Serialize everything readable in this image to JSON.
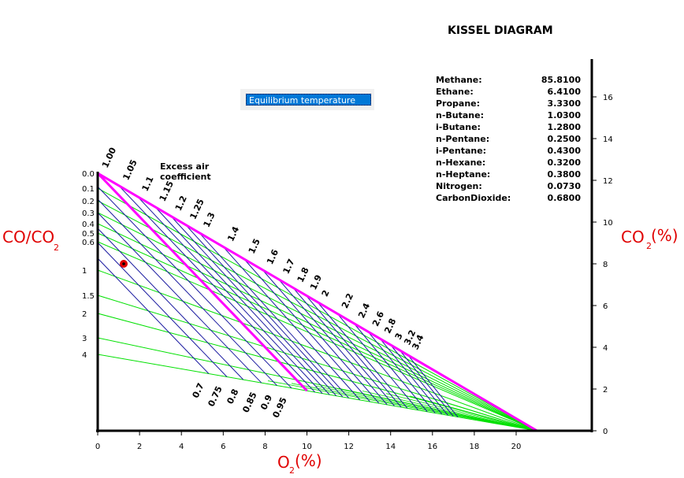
{
  "title": "KISSEL DIAGRAM",
  "dropdown": {
    "selected": "Equilibrium temperature"
  },
  "composition": [
    {
      "name": "Methane:",
      "value": "85.8100"
    },
    {
      "name": "Ethane:",
      "value": "6.4100"
    },
    {
      "name": "Propane:",
      "value": "3.3300"
    },
    {
      "name": "n-Butane:",
      "value": "1.0300"
    },
    {
      "name": "i-Butane:",
      "value": "1.2800"
    },
    {
      "name": "n-Pentane:",
      "value": "0.2500"
    },
    {
      "name": "i-Pentane:",
      "value": "0.4300"
    },
    {
      "name": "n-Hexane:",
      "value": "0.3200"
    },
    {
      "name": "n-Heptane:",
      "value": "0.3800"
    },
    {
      "name": "Nitrogen:",
      "value": "0.0730"
    },
    {
      "name": "CarbonDioxide:",
      "value": "0.6800"
    }
  ],
  "axes": {
    "x_label_main": "O",
    "x_label_sub": "2",
    "x_label_unit": "(%)",
    "x_ticks": [
      "0",
      "2",
      "4",
      "6",
      "8",
      "10",
      "12",
      "14",
      "16",
      "18",
      "20"
    ],
    "right_label_main": "CO",
    "right_label_sub": "2",
    "right_label_unit": "(%)",
    "right_ticks": [
      "0",
      "2",
      "4",
      "6",
      "8",
      "10",
      "12",
      "14",
      "16"
    ],
    "left_label_main": "CO/CO",
    "left_label_sub": "2",
    "left_ticks": [
      "0.0",
      "0.1",
      "0.2",
      "0.3",
      "0.4",
      "0.5",
      "0.6",
      "1",
      "1.5",
      "2",
      "3",
      "4"
    ]
  },
  "excess_air": {
    "label_line1": "Excess air",
    "label_line2": "coefficient",
    "rich_labels": [
      "0.7",
      "0.75",
      "0.8",
      "0.85",
      "0.9",
      "0.95"
    ],
    "lean_labels": [
      "1.00",
      "1.05",
      "1.1",
      "1.15",
      "1.2",
      "1.25",
      "1.3",
      "1.4",
      "1.5",
      "1.6",
      "1.7",
      "1.8",
      "1.9",
      "2",
      "2.2",
      "2.4",
      "2.6",
      "2.8",
      "3",
      "3.2",
      "3.4"
    ]
  },
  "colors": {
    "boundary": "#ff00ff",
    "ratio_lines": "#00e000",
    "air_lines": "#1a1aa0",
    "point": "#e00000",
    "axis_label": "#e00000"
  },
  "measured_point": {
    "o2": 1.25,
    "co_co2": 0.85
  }
}
